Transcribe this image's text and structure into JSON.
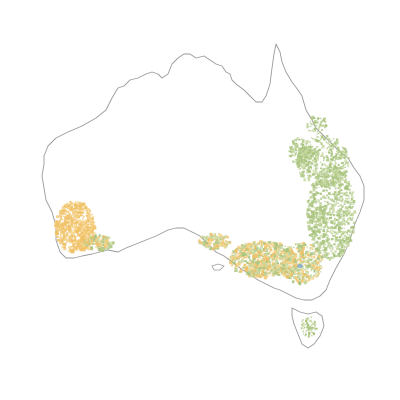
{
  "map": {
    "region": "Australia",
    "background_color": "#ffffff",
    "coastline_color": "#9a9a9a",
    "legend": [],
    "title": ""
  },
  "colors": {
    "land_use_green": "#a9c47f",
    "land_use_green_light": "#c8d9a3",
    "land_use_orange": "#f0c167",
    "land_use_orange_light": "#f5d58d",
    "water_blue": "#8fb3c9"
  }
}
